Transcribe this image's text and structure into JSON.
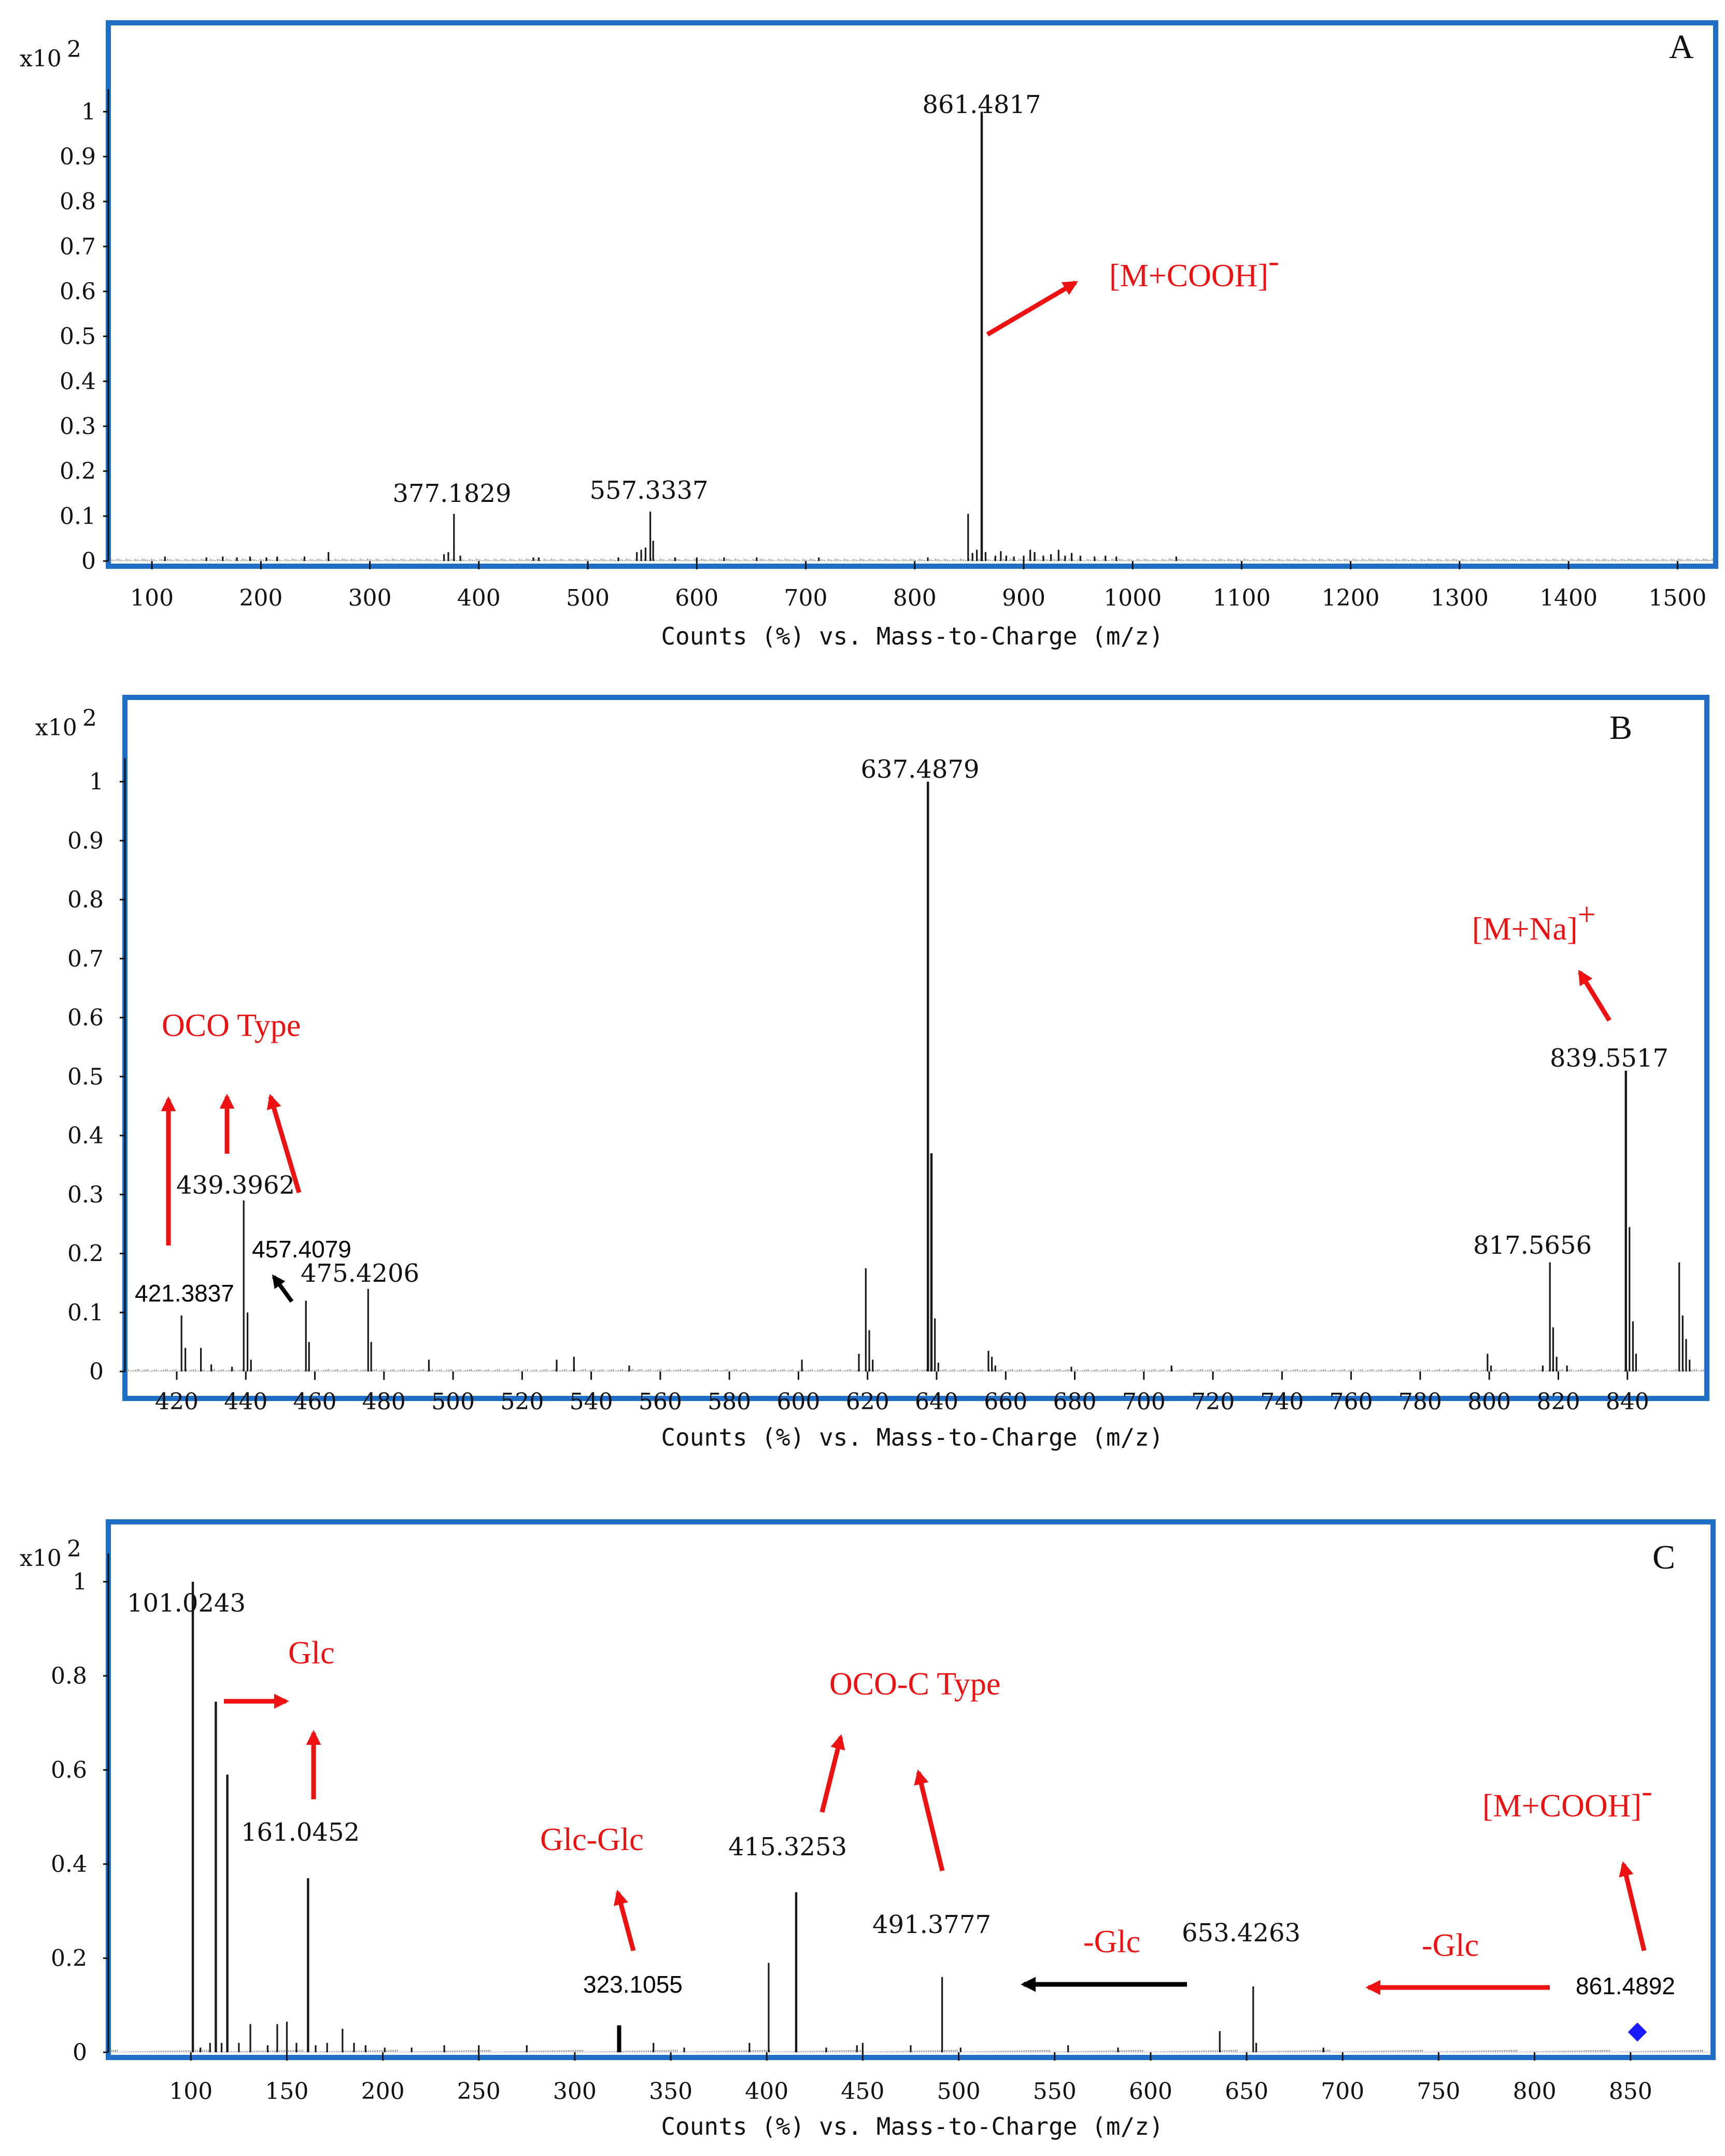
{
  "chart_data": [
    {
      "type": "bar",
      "panel": "A",
      "title": "",
      "xlabel": "Counts (%) vs. Mass-to-Charge (m/z)",
      "ylabel": "",
      "y_scale_label": "x10 2",
      "xlim": [
        60,
        1535
      ],
      "ylim": [
        0,
        1.05
      ],
      "x_ticks": [
        100,
        200,
        300,
        400,
        500,
        600,
        700,
        800,
        900,
        1000,
        1100,
        1200,
        1300,
        1400,
        1500
      ],
      "y_ticks": [
        0,
        0.1,
        0.2,
        0.3,
        0.4,
        0.5,
        0.6,
        0.7,
        0.8,
        0.9,
        1
      ],
      "y_tick_labels": [
        "0",
        "0.1",
        "0.2",
        "0.3",
        "0.4",
        "0.5",
        "0.6",
        "0.7",
        "0.8",
        "0.9",
        "1"
      ],
      "series": [
        {
          "name": "spectrum",
          "points": [
            [
              112,
              0.01
            ],
            [
              150,
              0.008
            ],
            [
              165,
              0.01
            ],
            [
              178,
              0.008
            ],
            [
              190,
              0.01
            ],
            [
              205,
              0.008
            ],
            [
              215,
              0.01
            ],
            [
              240,
              0.01
            ],
            [
              262,
              0.02
            ],
            [
              368,
              0.015
            ],
            [
              372,
              0.02
            ],
            [
              377.1829,
              0.105
            ],
            [
              383,
              0.012
            ],
            [
              450,
              0.008
            ],
            [
              455,
              0.008
            ],
            [
              528,
              0.008
            ],
            [
              545,
              0.02
            ],
            [
              549,
              0.025
            ],
            [
              553,
              0.03
            ],
            [
              557.3337,
              0.11
            ],
            [
              560,
              0.045
            ],
            [
              580,
              0.008
            ],
            [
              600,
              0.008
            ],
            [
              625,
              0.008
            ],
            [
              655,
              0.008
            ],
            [
              712,
              0.008
            ],
            [
              812,
              0.008
            ],
            [
              849,
              0.105
            ],
            [
              853,
              0.018
            ],
            [
              857,
              0.025
            ],
            [
              861.4817,
              1.0
            ],
            [
              865,
              0.02
            ],
            [
              874,
              0.012
            ],
            [
              879,
              0.022
            ],
            [
              884,
              0.012
            ],
            [
              891,
              0.01
            ],
            [
              900,
              0.012
            ],
            [
              906,
              0.025
            ],
            [
              910,
              0.02
            ],
            [
              918,
              0.012
            ],
            [
              925,
              0.015
            ],
            [
              932,
              0.025
            ],
            [
              938,
              0.012
            ],
            [
              944,
              0.018
            ],
            [
              952,
              0.012
            ],
            [
              965,
              0.01
            ],
            [
              975,
              0.012
            ],
            [
              985,
              0.01
            ],
            [
              1040,
              0.01
            ]
          ]
        }
      ],
      "peak_labels": [
        {
          "mz": 377.1829,
          "text": "377.1829"
        },
        {
          "mz": 557.3337,
          "text": "557.3337"
        },
        {
          "mz": 861.4817,
          "text": "861.4817"
        }
      ],
      "annotations": [
        {
          "text": "[M+COOH]",
          "sup": "-"
        }
      ]
    },
    {
      "type": "bar",
      "panel": "B",
      "title": "",
      "xlabel": "Counts (%) vs. Mass-to-Charge (m/z)",
      "ylabel": "",
      "y_scale_label": "x10 2",
      "xlim": [
        405,
        863
      ],
      "ylim": [
        0,
        1.04
      ],
      "x_ticks": [
        420,
        440,
        460,
        480,
        500,
        520,
        540,
        560,
        580,
        600,
        620,
        640,
        660,
        680,
        700,
        720,
        740,
        760,
        780,
        800,
        820,
        840
      ],
      "y_ticks": [
        0,
        0.1,
        0.2,
        0.3,
        0.4,
        0.5,
        0.6,
        0.7,
        0.8,
        0.9,
        1
      ],
      "y_tick_labels": [
        "0",
        "0.1",
        "0.2",
        "0.3",
        "0.4",
        "0.5",
        "0.6",
        "0.7",
        "0.8",
        "0.9",
        "1"
      ],
      "series": [
        {
          "name": "spectrum",
          "points": [
            [
              421.3837,
              0.095
            ],
            [
              422.5,
              0.04
            ],
            [
              427,
              0.04
            ],
            [
              430,
              0.012
            ],
            [
              436,
              0.008
            ],
            [
              439.3962,
              0.29
            ],
            [
              440.5,
              0.1
            ],
            [
              441.5,
              0.02
            ],
            [
              457.4079,
              0.12
            ],
            [
              458.3,
              0.05
            ],
            [
              475.4206,
              0.14
            ],
            [
              476.3,
              0.05
            ],
            [
              493,
              0.02
            ],
            [
              530,
              0.02
            ],
            [
              535,
              0.025
            ],
            [
              551,
              0.01
            ],
            [
              601,
              0.02
            ],
            [
              617.5,
              0.03
            ],
            [
              619.5,
              0.175
            ],
            [
              620.5,
              0.07
            ],
            [
              621.5,
              0.02
            ],
            [
              637.4879,
              1.0
            ],
            [
              638.5,
              0.37
            ],
            [
              639.5,
              0.09
            ],
            [
              640.5,
              0.015
            ],
            [
              655,
              0.035
            ],
            [
              656,
              0.025
            ],
            [
              657,
              0.01
            ],
            [
              679,
              0.008
            ],
            [
              708,
              0.01
            ],
            [
              799.5,
              0.03
            ],
            [
              800.5,
              0.01
            ],
            [
              815.5,
              0.01
            ],
            [
              817.5656,
              0.185
            ],
            [
              818.5,
              0.075
            ],
            [
              819.5,
              0.025
            ],
            [
              822.5,
              0.01
            ],
            [
              839.5517,
              0.51
            ],
            [
              840.6,
              0.245
            ],
            [
              841.6,
              0.085
            ],
            [
              842.5,
              0.03
            ],
            [
              855,
              0.185
            ],
            [
              856,
              0.095
            ],
            [
              857,
              0.055
            ],
            [
              858,
              0.02
            ]
          ]
        }
      ],
      "peak_labels": [
        {
          "mz": 421.3837,
          "text": "421.3837"
        },
        {
          "mz": 439.3962,
          "text": "439.3962"
        },
        {
          "mz": 457.4079,
          "text": "457.4079"
        },
        {
          "mz": 475.4206,
          "text": "475.4206"
        },
        {
          "mz": 637.4879,
          "text": "637.4879"
        },
        {
          "mz": 817.5656,
          "text": "817.5656"
        },
        {
          "mz": 839.5517,
          "text": "839.5517"
        }
      ],
      "annotations": [
        {
          "text": "OCO Type"
        },
        {
          "text": "[M+Na]",
          "sup": "+"
        }
      ]
    },
    {
      "type": "bar",
      "panel": "C",
      "title": "",
      "xlabel": "Counts (%) vs. Mass-to-Charge (m/z)",
      "ylabel": "",
      "y_scale_label": "x10 2",
      "xlim": [
        57,
        893
      ],
      "ylim": [
        0,
        1.06
      ],
      "x_ticks": [
        100,
        150,
        200,
        250,
        300,
        350,
        400,
        450,
        500,
        550,
        600,
        650,
        700,
        750,
        800,
        850
      ],
      "y_ticks": [
        0,
        0.2,
        0.4,
        0.6,
        0.8,
        1
      ],
      "y_tick_labels": [
        "0",
        "0.2",
        "0.4",
        "0.6",
        "0.8",
        "1"
      ],
      "series": [
        {
          "name": "spectrum",
          "points": [
            [
              101.0243,
              1.0
            ],
            [
              105,
              0.01
            ],
            [
              110,
              0.02
            ],
            [
              113,
              0.745
            ],
            [
              116,
              0.02
            ],
            [
              119,
              0.59
            ],
            [
              125,
              0.02
            ],
            [
              131,
              0.06
            ],
            [
              140,
              0.015
            ],
            [
              145,
              0.06
            ],
            [
              150,
              0.065
            ],
            [
              155,
              0.02
            ],
            [
              161.0452,
              0.37
            ],
            [
              165,
              0.015
            ],
            [
              171,
              0.02
            ],
            [
              179,
              0.05
            ],
            [
              185,
              0.02
            ],
            [
              191,
              0.015
            ],
            [
              201,
              0.01
            ],
            [
              215,
              0.01
            ],
            [
              232,
              0.015
            ],
            [
              250,
              0.015
            ],
            [
              275,
              0.015
            ],
            [
              323.1055,
              0.055
            ],
            [
              341,
              0.02
            ],
            [
              357,
              0.01
            ],
            [
              391,
              0.02
            ],
            [
              401,
              0.19
            ],
            [
              415.3253,
              0.34
            ],
            [
              431,
              0.01
            ],
            [
              447,
              0.015
            ],
            [
              450,
              0.02
            ],
            [
              475,
              0.015
            ],
            [
              491.3777,
              0.16
            ],
            [
              501,
              0.01
            ],
            [
              557,
              0.015
            ],
            [
              583,
              0.01
            ],
            [
              636,
              0.045
            ],
            [
              653.4263,
              0.14
            ],
            [
              655,
              0.02
            ],
            [
              690,
              0.01
            ]
          ]
        }
      ],
      "peak_labels": [
        {
          "mz": 101.0243,
          "text": "101.0243"
        },
        {
          "mz": 161.0452,
          "text": "161.0452"
        },
        {
          "mz": 323.1055,
          "text": "323.1055"
        },
        {
          "mz": 415.3253,
          "text": "415.3253"
        },
        {
          "mz": 491.3777,
          "text": "491.3777"
        },
        {
          "mz": 653.4263,
          "text": "653.4263"
        },
        {
          "mz": 861.4892,
          "text": "861.4892"
        }
      ],
      "annotations": [
        {
          "text": "Glc"
        },
        {
          "text": "OCO-C Type"
        },
        {
          "text": "Glc-Glc"
        },
        {
          "text": "-Glc"
        },
        {
          "text": "-Glc"
        },
        {
          "text": "[M+COOH]",
          "sup": "-"
        }
      ]
    }
  ],
  "colors": {
    "frame": "#1f6fc9",
    "annotation": "#ee1111",
    "bars": "#1a1a1a",
    "marker": "#1a1aff"
  },
  "panels": {
    "A": {
      "letter": "A",
      "scale_main": "x10",
      "scale_exp": "2",
      "xlabel": "Counts (%) vs. Mass-to-Charge (m/z)",
      "peak_labels": [
        "377.1829",
        "557.3337",
        "861.4817"
      ],
      "ann_main": "[M+COOH]",
      "ann_sup": "-"
    },
    "B": {
      "letter": "B",
      "scale_main": "x10",
      "scale_exp": "2",
      "xlabel": "Counts (%) vs. Mass-to-Charge (m/z)",
      "peak_labels": [
        "421.3837",
        "439.3962",
        "457.4079",
        "475.4206",
        "637.4879",
        "817.5656",
        "839.5517"
      ],
      "ann_oco": "OCO Type",
      "ann_mna_main": "[M+Na]",
      "ann_mna_sup": "+"
    },
    "C": {
      "letter": "C",
      "scale_main": "x10",
      "scale_exp": "2",
      "xlabel": "Counts (%) vs. Mass-to-Charge (m/z)",
      "peak_labels": [
        "101.0243",
        "161.0452",
        "323.1055",
        "415.3253",
        "491.3777",
        "653.4263",
        "861.4892"
      ],
      "ann_glc": "Glc",
      "ann_occ": "OCO-C Type",
      "ann_glcglc": "Glc-Glc",
      "ann_minus_glc_1": "-Glc",
      "ann_minus_glc_2": "-Glc",
      "ann_mcooh_main": "[M+COOH]",
      "ann_mcooh_sup": "-"
    }
  }
}
